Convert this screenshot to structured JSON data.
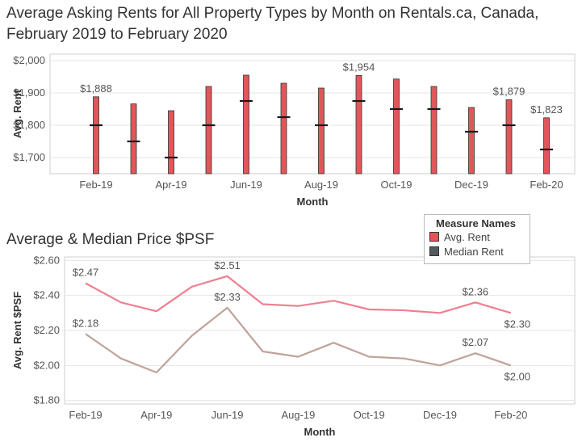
{
  "titles": {
    "top": "Average Asking Rents for All Property Types by Month on Rentals.ca, Canada, February 2019 to February 2020",
    "bottom": "Average & Median Price $PSF"
  },
  "legend": {
    "title": "Measure Names",
    "items": [
      {
        "label": "Avg. Rent",
        "color": "#e15759"
      },
      {
        "label": "Median Rent",
        "color": "#555a5e"
      }
    ]
  },
  "chart_data": [
    {
      "type": "bar",
      "categories": [
        "Feb-19",
        "Mar-19",
        "Apr-19",
        "May-19",
        "Jun-19",
        "Jul-19",
        "Aug-19",
        "Sep-19",
        "Oct-19",
        "Nov-19",
        "Dec-19",
        "Jan-20",
        "Feb-20"
      ],
      "xtick_labels": [
        "Feb-19",
        "Apr-19",
        "Jun-19",
        "Aug-19",
        "Oct-19",
        "Dec-19",
        "Feb-20"
      ],
      "series": [
        {
          "name": "Avg. Rent",
          "values": [
            1888,
            1866,
            1845,
            1920,
            1955,
            1930,
            1915,
            1954,
            1943,
            1920,
            1855,
            1879,
            1823
          ]
        },
        {
          "name": "Median Rent",
          "values": [
            1800,
            1750,
            1700,
            1800,
            1875,
            1825,
            1800,
            1875,
            1850,
            1850,
            1780,
            1800,
            1725
          ]
        }
      ],
      "data_labels": [
        {
          "index": 0,
          "text": "$1,888"
        },
        {
          "index": 7,
          "text": "$1,954"
        },
        {
          "index": 11,
          "text": "$1,879"
        },
        {
          "index": 12,
          "text": "$1,823"
        }
      ],
      "yticks": [
        1700,
        1800,
        1900,
        2000
      ],
      "ytick_labels": [
        "$1,700",
        "$1,800",
        "$1,900",
        "$2,000"
      ],
      "ylim": [
        1650,
        2020
      ],
      "xlabel": "Month",
      "ylabel": "Avg. Rent",
      "colors": {
        "bar": "#e15759",
        "median": "#1a1a1a"
      }
    },
    {
      "type": "line",
      "categories": [
        "Feb-19",
        "Mar-19",
        "Apr-19",
        "May-19",
        "Jun-19",
        "Jul-19",
        "Aug-19",
        "Sep-19",
        "Oct-19",
        "Nov-19",
        "Dec-19",
        "Jan-20",
        "Feb-20"
      ],
      "xtick_labels": [
        "Feb-19",
        "Apr-19",
        "Jun-19",
        "Aug-19",
        "Oct-19",
        "Dec-19",
        "Feb-20"
      ],
      "series": [
        {
          "name": "Avg. Rent",
          "values": [
            2.47,
            2.36,
            2.31,
            2.45,
            2.51,
            2.35,
            2.34,
            2.37,
            2.32,
            2.315,
            2.3,
            2.36,
            2.3
          ]
        },
        {
          "name": "Median Rent",
          "values": [
            2.18,
            2.04,
            1.96,
            2.17,
            2.33,
            2.08,
            2.05,
            2.13,
            2.05,
            2.04,
            2.0,
            2.07,
            2.0
          ]
        }
      ],
      "data_labels": [
        {
          "series": 0,
          "index": 0,
          "text": "$2.47"
        },
        {
          "series": 0,
          "index": 4,
          "text": "$2.51"
        },
        {
          "series": 0,
          "index": 11,
          "text": "$2.36"
        },
        {
          "series": 0,
          "index": 12,
          "text": "$2.30"
        },
        {
          "series": 1,
          "index": 0,
          "text": "$2.18"
        },
        {
          "series": 1,
          "index": 4,
          "text": "$2.33"
        },
        {
          "series": 1,
          "index": 11,
          "text": "$2.07"
        },
        {
          "series": 1,
          "index": 12,
          "text": "$2.00"
        }
      ],
      "yticks": [
        1.8,
        2.0,
        2.2,
        2.4,
        2.6
      ],
      "ytick_labels": [
        "$1.80",
        "$2.00",
        "$2.20",
        "$2.40",
        "$2.60"
      ],
      "ylim": [
        1.78,
        2.62
      ],
      "xlabel": "Month",
      "ylabel": "Avg. Rent $PSF",
      "colors": {
        "avg": "#ef7f8f",
        "median": "#bfa39b"
      }
    }
  ]
}
